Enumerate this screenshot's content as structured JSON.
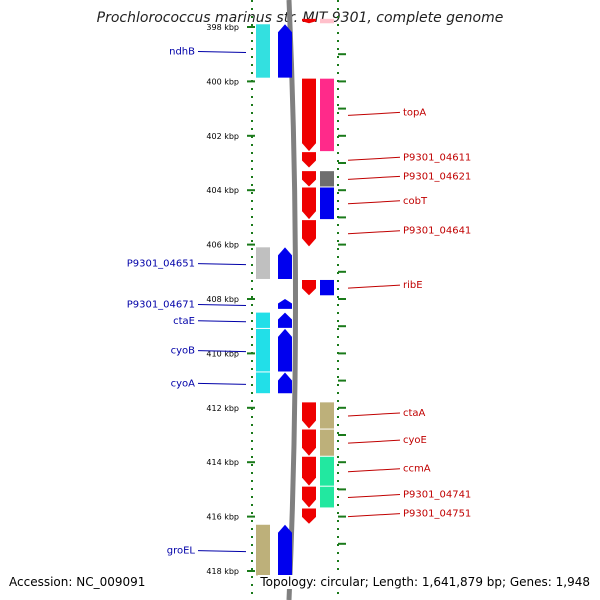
{
  "title": "Prochlorococcus marinus str. MIT 9301, complete genome",
  "footer": {
    "accession": "Accession: NC_009091",
    "summary": "Topology: circular; Length: 1,641,879 bp; Genes: 1,948"
  },
  "colors": {
    "backbone": "#808080",
    "dots": "#1a7a1a",
    "label_left": "#0000a8",
    "label_right": "#c00000"
  },
  "chart_data": {
    "type": "genome-map",
    "position_unit": "kbp",
    "view_range": [
      397.8,
      418.2
    ],
    "ticks": [
      {
        "pos": 398,
        "label": "398 kbp"
      },
      {
        "pos": 400,
        "label": "400 kbp"
      },
      {
        "pos": 402,
        "label": "402 kbp"
      },
      {
        "pos": 404,
        "label": "404 kbp"
      },
      {
        "pos": 406,
        "label": "406 kbp"
      },
      {
        "pos": 408,
        "label": "408 kbp"
      },
      {
        "pos": 410,
        "label": "410 kbp"
      },
      {
        "pos": 412,
        "label": "412 kbp"
      },
      {
        "pos": 414,
        "label": "414 kbp"
      },
      {
        "pos": 416,
        "label": "416 kbp"
      },
      {
        "pos": 418,
        "label": "418 kbp"
      }
    ],
    "features": [
      {
        "strand": "+",
        "start": 397.7,
        "end": 397.9,
        "cog": "#ffc0cb",
        "label": ""
      },
      {
        "strand": "-",
        "start": 397.9,
        "end": 399.9,
        "cog": "#33e0e0",
        "label": "ndhB"
      },
      {
        "strand": "+",
        "start": 399.9,
        "end": 402.6,
        "cog": "#ff2a8a",
        "label": "topA"
      },
      {
        "strand": "+",
        "start": 402.6,
        "end": 403.2,
        "cog": "",
        "label": "P9301_04611"
      },
      {
        "strand": "+",
        "start": 403.3,
        "end": 403.9,
        "cog": "#6e6e6e",
        "label": "P9301_04621"
      },
      {
        "strand": "+",
        "start": 403.9,
        "end": 405.1,
        "cog": "#0000ee",
        "label": "cobT"
      },
      {
        "strand": "+",
        "start": 405.1,
        "end": 406.1,
        "cog": "",
        "label": "P9301_04641"
      },
      {
        "strand": "-",
        "start": 406.1,
        "end": 407.3,
        "cog": "#c0c0c0",
        "label": "P9301_04651"
      },
      {
        "strand": "+",
        "start": 407.3,
        "end": 407.9,
        "cog": "#0000ee",
        "label": "ribE"
      },
      {
        "strand": "-",
        "start": 408.0,
        "end": 408.4,
        "cog": "",
        "label": "P9301_04671"
      },
      {
        "strand": "-",
        "start": 408.5,
        "end": 409.1,
        "cog": "#22dfe8",
        "label": "ctaE"
      },
      {
        "strand": "-",
        "start": 409.1,
        "end": 410.7,
        "cog": "#22dfe8",
        "label": "cyoB"
      },
      {
        "strand": "-",
        "start": 410.7,
        "end": 411.5,
        "cog": "#22dfe8",
        "label": "cyoA"
      },
      {
        "strand": "+",
        "start": 411.8,
        "end": 412.8,
        "cog": "#bdb07a",
        "label": "ctaA"
      },
      {
        "strand": "+",
        "start": 412.8,
        "end": 413.8,
        "cog": "#bdb07a",
        "label": "cyoE"
      },
      {
        "strand": "+",
        "start": 413.8,
        "end": 414.9,
        "cog": "#22e8a0",
        "label": "ccmA"
      },
      {
        "strand": "+",
        "start": 414.9,
        "end": 415.7,
        "cog": "#22e8a0",
        "label": "P9301_04741"
      },
      {
        "strand": "+",
        "start": 415.7,
        "end": 416.3,
        "cog": "",
        "label": "P9301_04751"
      },
      {
        "strand": "-",
        "start": 416.3,
        "end": 418.2,
        "cog": "#bdb07a",
        "label": "groEL"
      }
    ]
  }
}
